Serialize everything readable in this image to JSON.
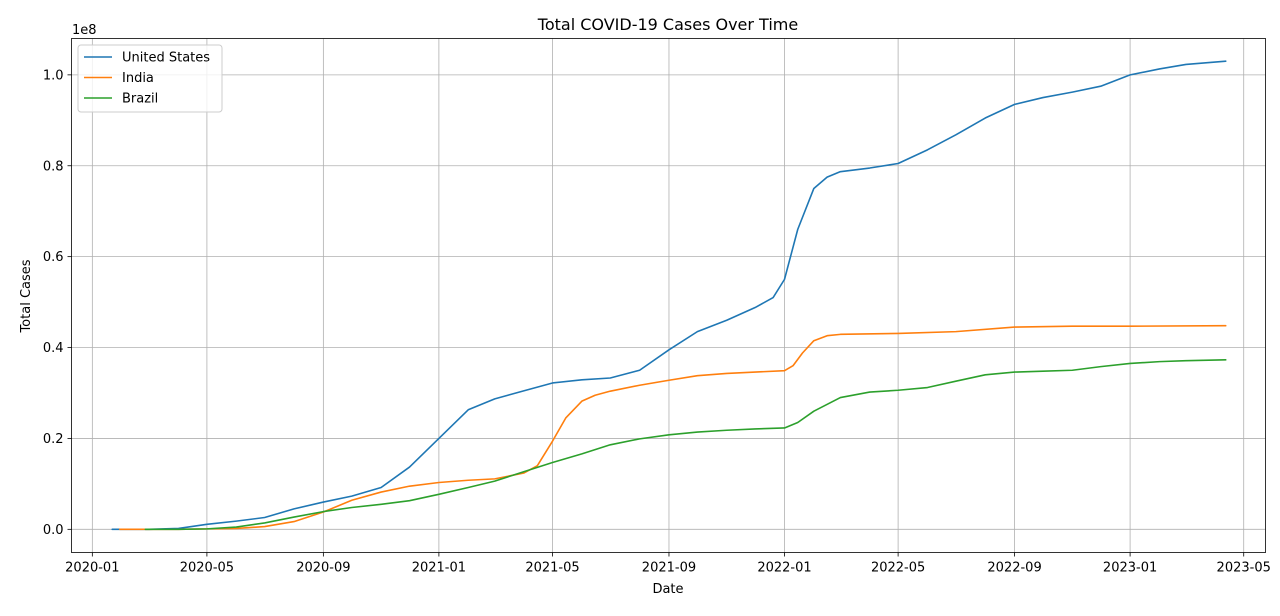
{
  "chart_data": {
    "type": "line",
    "title": "Total COVID-19 Cases Over Time",
    "xlabel": "Date",
    "ylabel": "Total Cases",
    "y_offset_text": "1e8",
    "y_multiplier": 100000000,
    "xlim": [
      "2019-12-10",
      "2023-05-24"
    ],
    "ylim": [
      -5100000,
      108000000
    ],
    "x_ticks": [
      {
        "date": "2020-01-01",
        "label": "2020-01"
      },
      {
        "date": "2020-05-01",
        "label": "2020-05"
      },
      {
        "date": "2020-09-01",
        "label": "2020-09"
      },
      {
        "date": "2021-01-01",
        "label": "2021-01"
      },
      {
        "date": "2021-05-01",
        "label": "2021-05"
      },
      {
        "date": "2021-09-01",
        "label": "2021-09"
      },
      {
        "date": "2022-01-01",
        "label": "2022-01"
      },
      {
        "date": "2022-05-01",
        "label": "2022-05"
      },
      {
        "date": "2022-09-01",
        "label": "2022-09"
      },
      {
        "date": "2023-01-01",
        "label": "2023-01"
      },
      {
        "date": "2023-05-01",
        "label": "2023-05"
      }
    ],
    "y_ticks": [
      {
        "value": 0,
        "label": "0.0"
      },
      {
        "value": 20000000,
        "label": "0.2"
      },
      {
        "value": 40000000,
        "label": "0.4"
      },
      {
        "value": 60000000,
        "label": "0.6"
      },
      {
        "value": 80000000,
        "label": "0.8"
      },
      {
        "value": 100000000,
        "label": "1.0"
      }
    ],
    "grid": true,
    "legend_position": "top-left",
    "series": [
      {
        "name": "United States",
        "color": "#1f77b4",
        "points": [
          [
            "2020-01-22",
            0
          ],
          [
            "2020-03-01",
            0
          ],
          [
            "2020-04-01",
            200000
          ],
          [
            "2020-05-01",
            1100000
          ],
          [
            "2020-06-01",
            1800000
          ],
          [
            "2020-07-01",
            2600000
          ],
          [
            "2020-08-01",
            4500000
          ],
          [
            "2020-09-01",
            6000000
          ],
          [
            "2020-10-01",
            7300000
          ],
          [
            "2020-11-01",
            9200000
          ],
          [
            "2020-12-01",
            13700000
          ],
          [
            "2021-01-01",
            20000000
          ],
          [
            "2021-02-01",
            26300000
          ],
          [
            "2021-03-01",
            28700000
          ],
          [
            "2021-04-01",
            30500000
          ],
          [
            "2021-05-01",
            32200000
          ],
          [
            "2021-06-01",
            32900000
          ],
          [
            "2021-07-01",
            33300000
          ],
          [
            "2021-08-01",
            35000000
          ],
          [
            "2021-09-01",
            39500000
          ],
          [
            "2021-10-01",
            43500000
          ],
          [
            "2021-11-01",
            46000000
          ],
          [
            "2021-12-01",
            48800000
          ],
          [
            "2021-12-20",
            51000000
          ],
          [
            "2022-01-01",
            55000000
          ],
          [
            "2022-01-15",
            66000000
          ],
          [
            "2022-02-01",
            75000000
          ],
          [
            "2022-02-15",
            77500000
          ],
          [
            "2022-03-01",
            78700000
          ],
          [
            "2022-04-01",
            79500000
          ],
          [
            "2022-05-01",
            80500000
          ],
          [
            "2022-06-01",
            83500000
          ],
          [
            "2022-07-01",
            86800000
          ],
          [
            "2022-08-01",
            90500000
          ],
          [
            "2022-09-01",
            93500000
          ],
          [
            "2022-10-01",
            95000000
          ],
          [
            "2022-11-01",
            96200000
          ],
          [
            "2022-12-01",
            97500000
          ],
          [
            "2023-01-01",
            100000000
          ],
          [
            "2023-02-01",
            101300000
          ],
          [
            "2023-03-01",
            102300000
          ],
          [
            "2023-04-12",
            103000000
          ]
        ]
      },
      {
        "name": "India",
        "color": "#ff7f0e",
        "points": [
          [
            "2020-01-30",
            0
          ],
          [
            "2020-04-01",
            0
          ],
          [
            "2020-05-01",
            100000
          ],
          [
            "2020-06-01",
            200000
          ],
          [
            "2020-07-01",
            600000
          ],
          [
            "2020-08-01",
            1700000
          ],
          [
            "2020-09-01",
            3800000
          ],
          [
            "2020-10-01",
            6400000
          ],
          [
            "2020-11-01",
            8200000
          ],
          [
            "2020-12-01",
            9500000
          ],
          [
            "2021-01-01",
            10300000
          ],
          [
            "2021-02-01",
            10800000
          ],
          [
            "2021-03-01",
            11100000
          ],
          [
            "2021-04-01",
            12400000
          ],
          [
            "2021-04-15",
            14000000
          ],
          [
            "2021-05-01",
            19400000
          ],
          [
            "2021-05-15",
            24500000
          ],
          [
            "2021-06-01",
            28200000
          ],
          [
            "2021-06-15",
            29500000
          ],
          [
            "2021-07-01",
            30400000
          ],
          [
            "2021-08-01",
            31700000
          ],
          [
            "2021-09-01",
            32800000
          ],
          [
            "2021-10-01",
            33800000
          ],
          [
            "2021-11-01",
            34300000
          ],
          [
            "2021-12-01",
            34600000
          ],
          [
            "2022-01-01",
            34900000
          ],
          [
            "2022-01-10",
            36000000
          ],
          [
            "2022-01-20",
            38800000
          ],
          [
            "2022-02-01",
            41500000
          ],
          [
            "2022-02-15",
            42600000
          ],
          [
            "2022-03-01",
            42900000
          ],
          [
            "2022-05-01",
            43100000
          ],
          [
            "2022-07-01",
            43500000
          ],
          [
            "2022-09-01",
            44500000
          ],
          [
            "2022-11-01",
            44700000
          ],
          [
            "2023-01-01",
            44700000
          ],
          [
            "2023-04-12",
            44800000
          ]
        ]
      },
      {
        "name": "Brazil",
        "color": "#2ca02c",
        "points": [
          [
            "2020-02-26",
            0
          ],
          [
            "2020-04-01",
            0
          ],
          [
            "2020-05-01",
            100000
          ],
          [
            "2020-06-01",
            500000
          ],
          [
            "2020-07-01",
            1400000
          ],
          [
            "2020-08-01",
            2700000
          ],
          [
            "2020-09-01",
            3900000
          ],
          [
            "2020-10-01",
            4800000
          ],
          [
            "2020-11-01",
            5500000
          ],
          [
            "2020-12-01",
            6300000
          ],
          [
            "2021-01-01",
            7700000
          ],
          [
            "2021-02-01",
            9200000
          ],
          [
            "2021-03-01",
            10600000
          ],
          [
            "2021-04-01",
            12700000
          ],
          [
            "2021-05-01",
            14700000
          ],
          [
            "2021-06-01",
            16600000
          ],
          [
            "2021-07-01",
            18600000
          ],
          [
            "2021-08-01",
            19900000
          ],
          [
            "2021-09-01",
            20800000
          ],
          [
            "2021-10-01",
            21400000
          ],
          [
            "2021-11-01",
            21800000
          ],
          [
            "2021-12-01",
            22100000
          ],
          [
            "2022-01-01",
            22300000
          ],
          [
            "2022-01-15",
            23500000
          ],
          [
            "2022-02-01",
            26000000
          ],
          [
            "2022-03-01",
            29000000
          ],
          [
            "2022-04-01",
            30200000
          ],
          [
            "2022-05-01",
            30600000
          ],
          [
            "2022-06-01",
            31200000
          ],
          [
            "2022-07-01",
            32600000
          ],
          [
            "2022-08-01",
            34000000
          ],
          [
            "2022-09-01",
            34600000
          ],
          [
            "2022-10-01",
            34800000
          ],
          [
            "2022-11-01",
            35000000
          ],
          [
            "2022-12-01",
            35800000
          ],
          [
            "2023-01-01",
            36500000
          ],
          [
            "2023-02-01",
            36900000
          ],
          [
            "2023-03-01",
            37100000
          ],
          [
            "2023-04-12",
            37300000
          ]
        ]
      }
    ]
  }
}
